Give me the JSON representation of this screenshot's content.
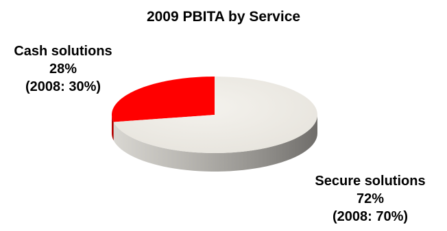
{
  "chart_data": {
    "type": "pie",
    "title": "2009 PBITA by Service",
    "slices": [
      {
        "name": "Cash solutions",
        "value": 28,
        "value_label": "28%",
        "note": "(2008: 30%)",
        "color": "#ff0000",
        "side_color": "#b30000"
      },
      {
        "name": "Secure solutions",
        "value": 72,
        "value_label": "72%",
        "note": "(2008: 70%)",
        "color": "#eeebe5",
        "side_color": "#a9a7a2"
      }
    ],
    "style": "3d"
  }
}
